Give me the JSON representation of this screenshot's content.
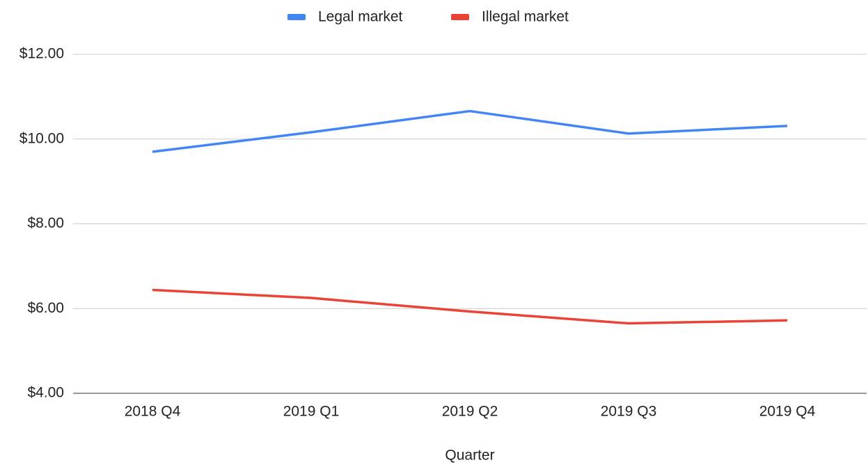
{
  "chart_data": {
    "type": "line",
    "categories": [
      "2018 Q4",
      "2019 Q1",
      "2019 Q2",
      "2019 Q3",
      "2019 Q4"
    ],
    "series": [
      {
        "name": "Legal market",
        "color": "#4285f4",
        "values": [
          9.7,
          10.16,
          10.66,
          10.13,
          10.31
        ]
      },
      {
        "name": "Illegal market",
        "color": "#ea4335",
        "values": [
          6.44,
          6.25,
          5.93,
          5.65,
          5.72
        ]
      }
    ],
    "x_label": "Quarter",
    "ylim": [
      4,
      12
    ],
    "yticks": [
      {
        "value": 4,
        "label": "$4.00"
      },
      {
        "value": 6,
        "label": "$6.00"
      },
      {
        "value": 8,
        "label": "$8.00"
      },
      {
        "value": 10,
        "label": "$10.00"
      },
      {
        "value": 12,
        "label": "$12.00"
      }
    ],
    "grid": true,
    "legend": "top"
  }
}
